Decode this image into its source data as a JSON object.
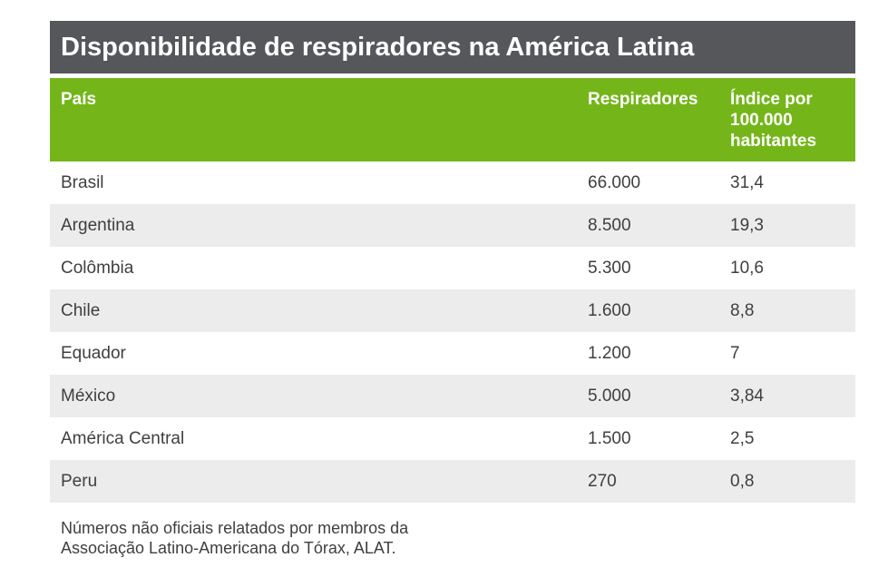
{
  "title": "Disponibilidade de respiradores na América Latina",
  "header": {
    "col_country": "País",
    "col_respirators": "Respiradores",
    "col_index": "Índice por 100.000 habitantes"
  },
  "rows": [
    {
      "country": "Brasil",
      "respirators": "66.000",
      "index": "31,4"
    },
    {
      "country": "Argentina",
      "respirators": "8.500",
      "index": "19,3"
    },
    {
      "country": "Colômbia",
      "respirators": "5.300",
      "index": "10,6"
    },
    {
      "country": "Chile",
      "respirators": "1.600",
      "index": "8,8"
    },
    {
      "country": "Equador",
      "respirators": "1.200",
      "index": "7"
    },
    {
      "country": "México",
      "respirators": "5.000",
      "index": "3,84"
    },
    {
      "country": "América Central",
      "respirators": "1.500",
      "index": "2,5"
    },
    {
      "country": "Peru",
      "respirators": "270",
      "index": "0,8"
    }
  ],
  "footnote": {
    "line1": "Números não oficiais relatados por membros da",
    "line2": "Associação Latino-Americana do Tórax, ALAT."
  },
  "colors": {
    "title_bar_bg": "#55575a",
    "header_green": "#74b61a",
    "row_alt_gray": "#ececec",
    "body_text": "#3f3f3f",
    "header_text": "#ffffff"
  },
  "chart_data": {
    "type": "table",
    "title": "Disponibilidade de respiradores na América Latina",
    "columns": [
      "País",
      "Respiradores",
      "Índice por 100.000 habitantes"
    ],
    "rows": [
      [
        "Brasil",
        "66.000",
        "31,4"
      ],
      [
        "Argentina",
        "8.500",
        "19,3"
      ],
      [
        "Colômbia",
        "5.300",
        "10,6"
      ],
      [
        "Chile",
        "1.600",
        "8,8"
      ],
      [
        "Equador",
        "1.200",
        "7"
      ],
      [
        "México",
        "5.000",
        "3,84"
      ],
      [
        "América Central",
        "1.500",
        "2,5"
      ],
      [
        "Peru",
        "270",
        "0,8"
      ]
    ],
    "countries": [
      "Brasil",
      "Argentina",
      "Colômbia",
      "Chile",
      "Equador",
      "México",
      "América Central",
      "Peru"
    ],
    "respirators": [
      66000,
      8500,
      5300,
      1600,
      1200,
      5000,
      1500,
      270
    ],
    "index_per_100k": [
      31.4,
      19.3,
      10.6,
      8.8,
      7,
      3.84,
      2.5,
      0.8
    ],
    "footnote": "Números não oficiais relatados por membros da Associação Latino-Americana do Tórax, ALAT."
  }
}
